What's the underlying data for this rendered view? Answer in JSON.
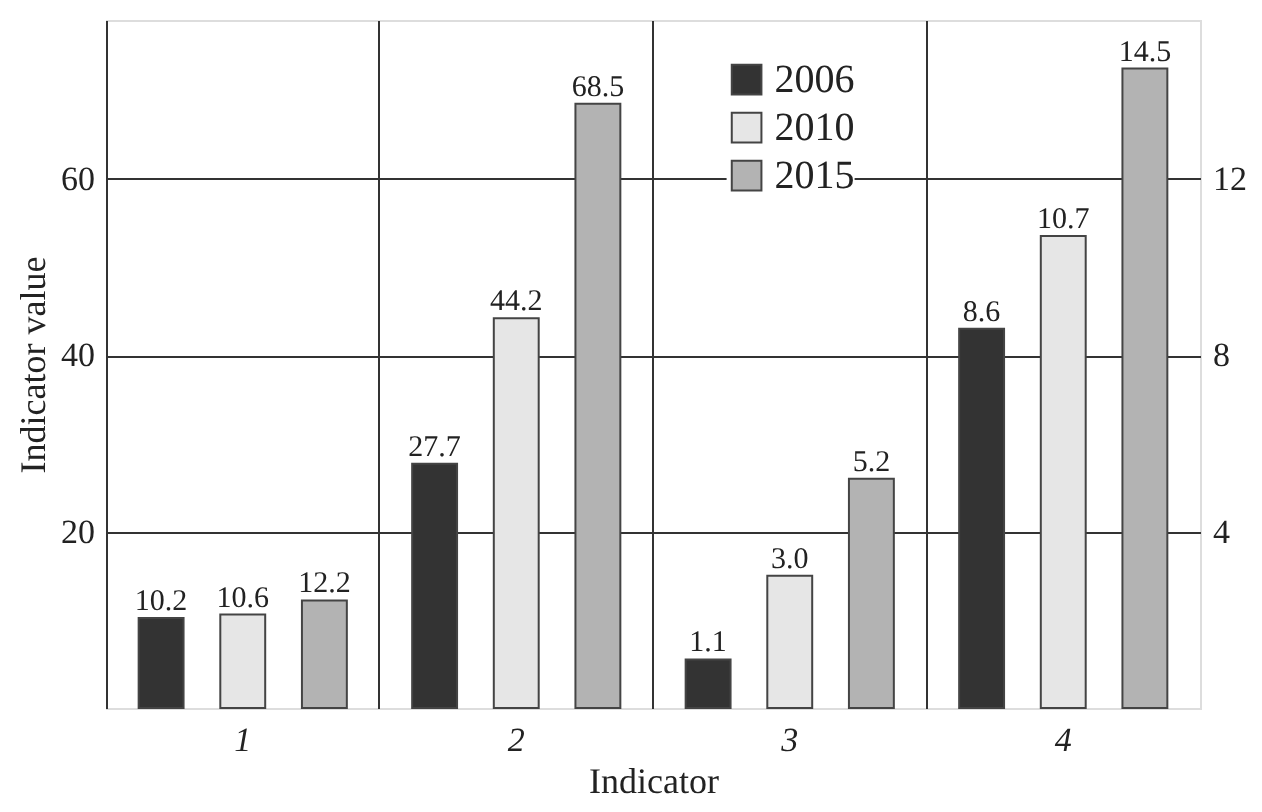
{
  "chart_data": {
    "type": "bar",
    "xlabel": "Indicator",
    "ylabel": "Indicator value",
    "categories": [
      "1",
      "2",
      "3",
      "4"
    ],
    "series": [
      {
        "name": "2006",
        "color": "#333333",
        "values": [
          10.2,
          27.7,
          null,
          null
        ],
        "value_labels": [
          "10.2",
          "27.7",
          null,
          null
        ]
      },
      {
        "name": "2010",
        "color": "#e6e6e6",
        "values": [
          10.6,
          44.2,
          null,
          null
        ],
        "value_labels": [
          "10.6",
          "44.2",
          null,
          null
        ]
      },
      {
        "name": "2015",
        "color": "#b3b3b3",
        "values": [
          12.2,
          68.5,
          null,
          null
        ],
        "value_labels": [
          "12.2",
          "68.5",
          null,
          null
        ]
      },
      {
        "color": "#333333",
        "axis": "y2",
        "values": [
          null,
          null,
          1.1,
          8.6
        ],
        "value_labels": [
          null,
          null,
          "1.1",
          "8.6"
        ]
      },
      {
        "color": "#e6e6e6",
        "axis": "y2",
        "values": [
          null,
          null,
          3.0,
          10.7
        ],
        "value_labels": [
          null,
          null,
          "3.0",
          "10.7"
        ]
      },
      {
        "color": "#b3b3b3",
        "axis": "y2",
        "values": [
          null,
          null,
          5.2,
          14.5
        ],
        "value_labels": [
          null,
          null,
          "5.2",
          "14.5"
        ]
      }
    ],
    "ylim": [
      0,
      78
    ],
    "yticks": [
      20,
      40,
      60
    ],
    "y2lim": [
      0,
      15.6
    ],
    "y2ticks": [
      4,
      8,
      12
    ],
    "grid": true,
    "legend": "top right"
  }
}
